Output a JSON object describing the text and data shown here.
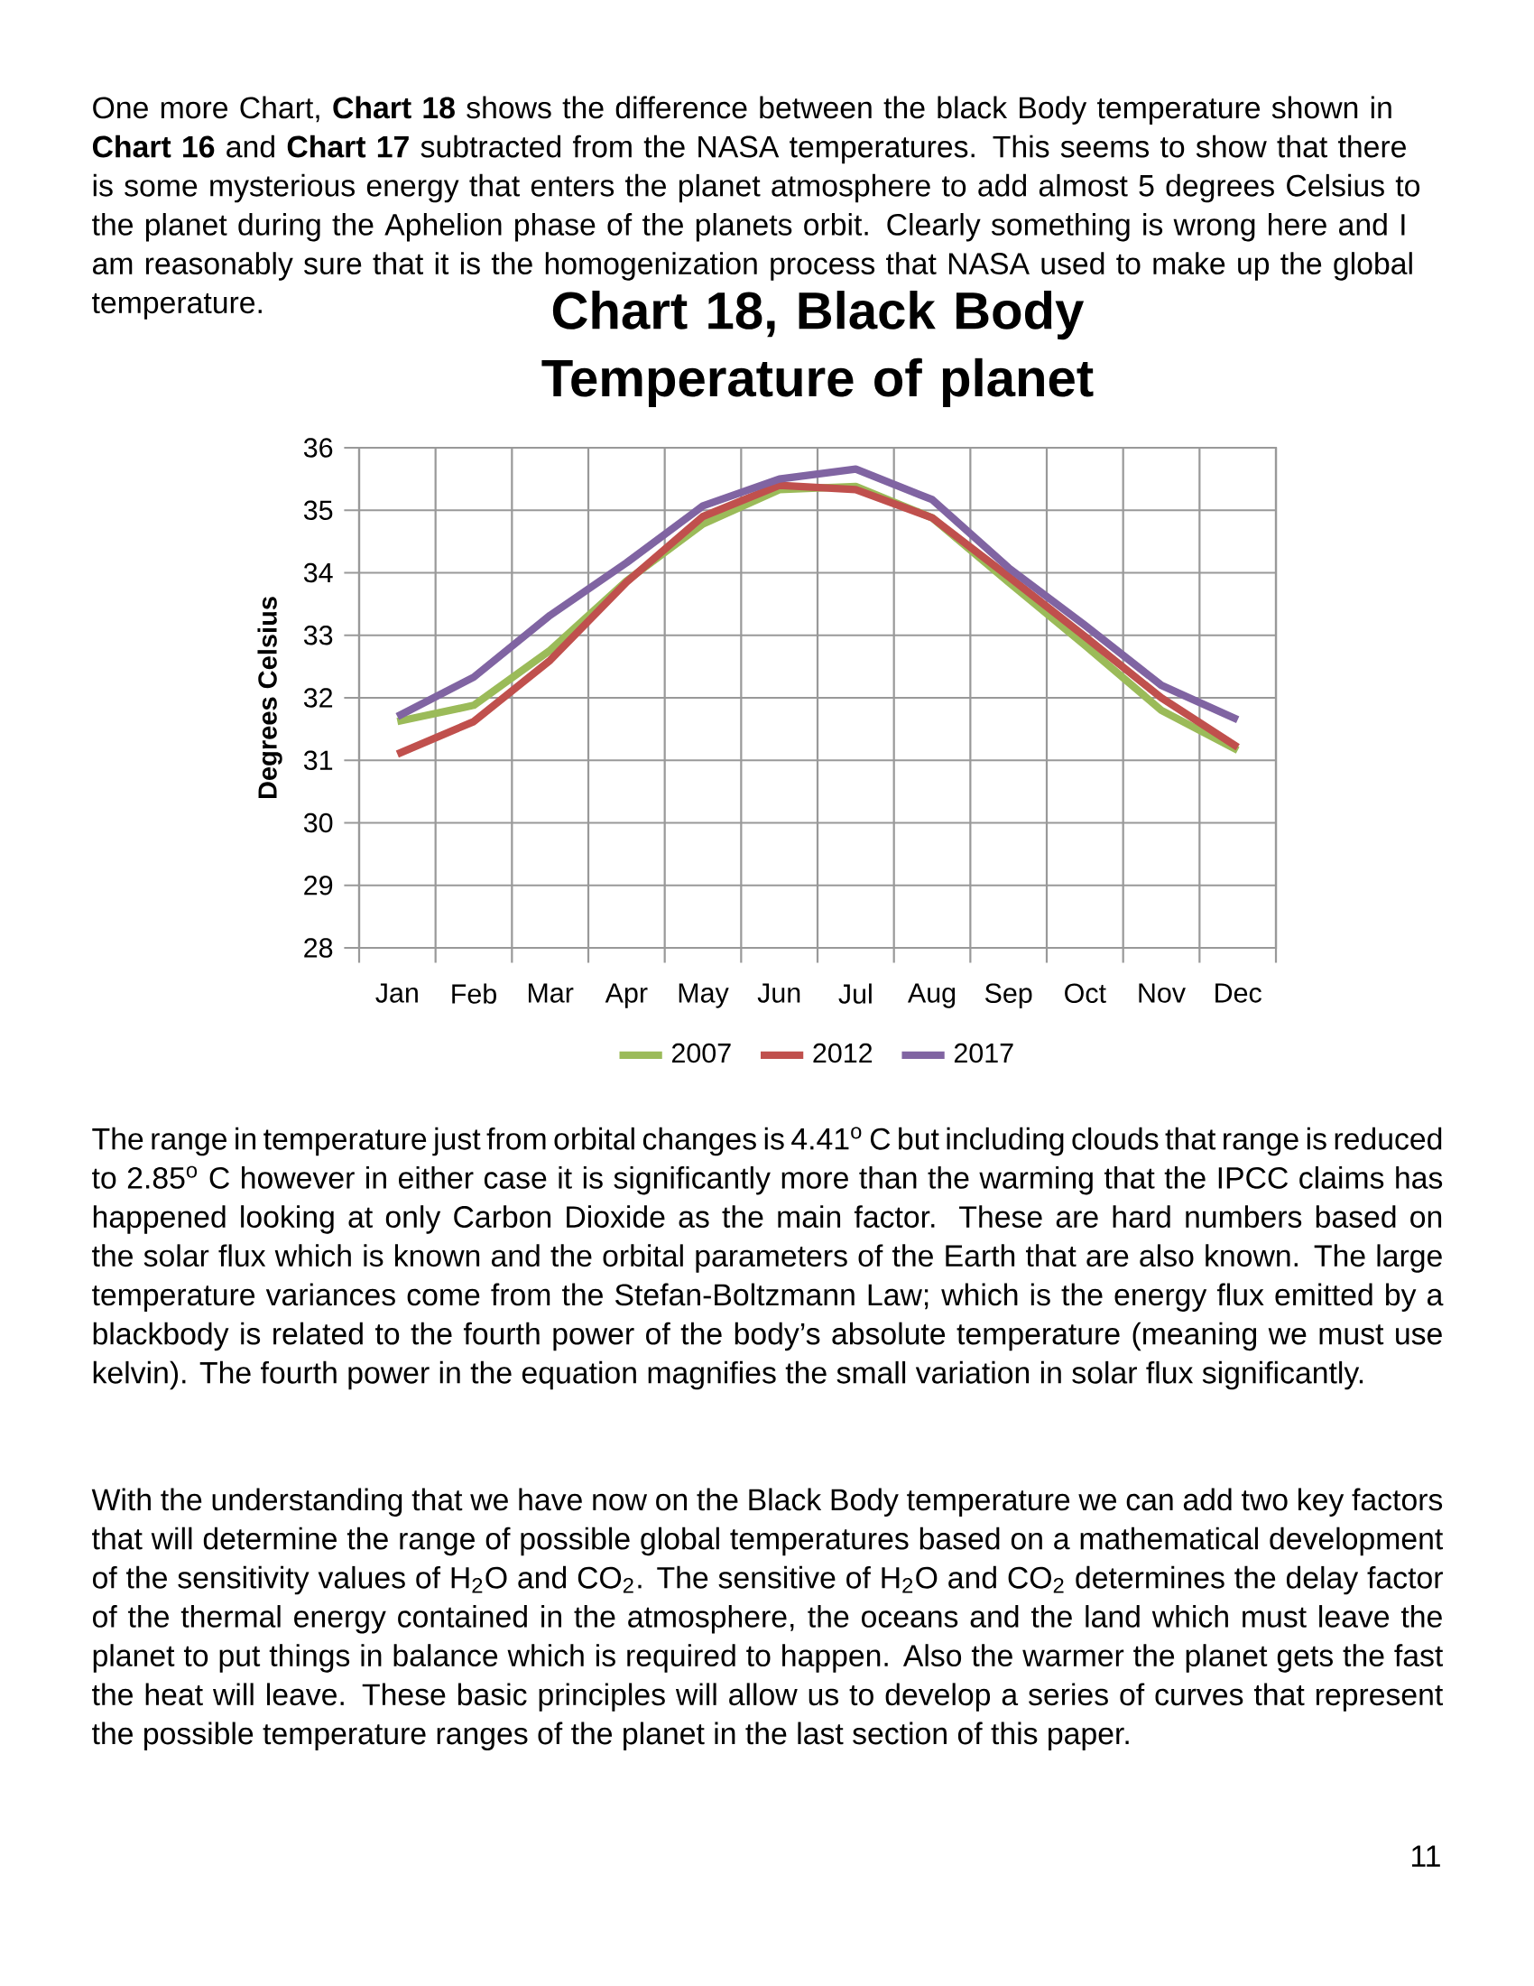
{
  "chart_data": {
    "type": "line",
    "title": "Chart 18, Black Body Temperature of planet",
    "ylabel": "Degrees Celsius",
    "categories": [
      "Jan",
      "Feb",
      "Mar",
      "Apr",
      "May",
      "Jun",
      "Jul",
      "Aug",
      "Sep",
      "Oct",
      "Nov",
      "Dec"
    ],
    "series": [
      {
        "name": "2007",
        "color": "#9bbb59",
        "values": [
          31.62,
          31.88,
          32.76,
          33.87,
          34.78,
          35.33,
          35.38,
          34.88,
          33.85,
          32.84,
          31.8,
          31.16
        ]
      },
      {
        "name": "2012",
        "color": "#c0504d",
        "values": [
          31.1,
          31.62,
          32.6,
          33.85,
          34.9,
          35.4,
          35.33,
          34.88,
          33.94,
          32.98,
          32.0,
          31.21
        ]
      },
      {
        "name": "2017",
        "color": "#8064a2",
        "values": [
          31.7,
          32.33,
          33.32,
          34.16,
          35.07,
          35.5,
          35.66,
          35.17,
          34.08,
          33.16,
          32.2,
          31.65
        ]
      }
    ],
    "ylim": [
      28,
      36
    ],
    "yticks": [
      28,
      29,
      30,
      31,
      32,
      33,
      34,
      35,
      36
    ],
    "grid": true,
    "legend": "bottom",
    "marker": "none",
    "line_style": "solid",
    "annotations": [
      "One more Chart, **Chart 18** shows the difference between the black Body temperature shown in **Chart 16** and **Chart 17** subtracted from the NASA temperatures. This seems to show that there is some mysterious energy that enters the planet atmosphere to add almost 5 degrees Celsius to the planet during the Aphelion phase of the planets orbit. Clearly something is wrong here and I am reasonably sure that it is the homogenization process that NASA used to make up the global temperature.",
      "The range in temperature just from orbital changes is 4.41$^{o}$ C but including clouds that range is reduced to 2.85$^{o}$ C however in either case it is significantly more than the warming that the IPCC claims has happened looking at only Carbon Dioxide as the main factor. These are hard numbers based on the solar flux which is known and the orbital parameters of the Earth that are also known. The large temperature variances come from the Stefan-Boltzmann Law; which is the energy flux emitted by a blackbody is related to the fourth power of the body’s absolute temperature (meaning we must use kelvin). The fourth power in the equation magnifies the small variation in solar flux significantly.",
      "With the understanding that we have now on the Black Body temperature we can add two key factors that will determine the range of possible global temperatures based on a mathematical development of the sensitivity values of H$_{2}$O and CO$_{2}$. The sensitive of H$_{2}$O and CO$_{2}$ determines the delay factor of the thermal energy contained in the atmosphere, the oceans and the land which must leave the planet to put things in balance which is required to happen. Also the warmer the planet gets the fast the heat will leave. These basic principles will allow us to develop a series of curves that represent the possible temperature ranges of the planet in the last section of this paper.",
      "11"
    ]
  }
}
